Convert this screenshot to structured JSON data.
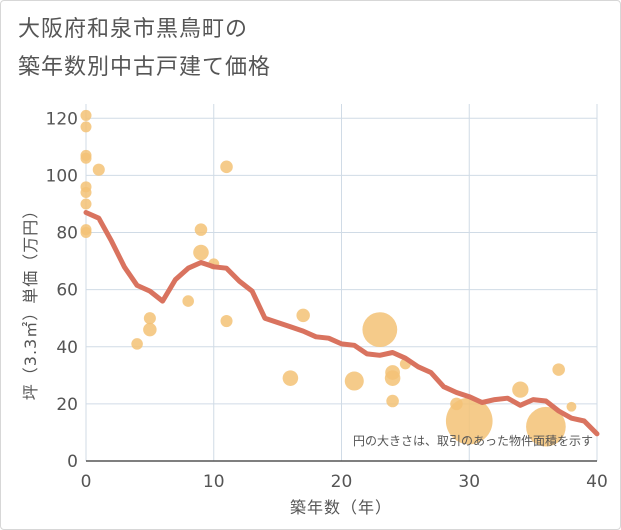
{
  "title_line1": "大阪府和泉市黒鳥町の",
  "title_line2": "築年数別中古戸建て価格",
  "chart_data": {
    "type": "scatter",
    "title": "大阪府和泉市黒鳥町の築年数別中古戸建て価格",
    "xlabel": "築年数（年）",
    "ylabel": "坪（3.3㎡）単価（万円）",
    "xlim": [
      0,
      40
    ],
    "ylim": [
      0,
      125
    ],
    "xticks": [
      0,
      10,
      20,
      30,
      40
    ],
    "yticks": [
      0,
      20,
      40,
      60,
      80,
      100,
      120
    ],
    "xtick_labels": [
      "0",
      "10",
      "20",
      "30",
      "40"
    ],
    "ytick_labels": [
      "0",
      "20",
      "40",
      "60",
      "80",
      "100",
      "120"
    ],
    "note": "円の大きさは、取引のあった物件面積を示す",
    "grid": true,
    "colors": {
      "bubble": "#f3c275",
      "line": "#d9735f",
      "grid": "#d0dbe6",
      "axis": "#555555"
    },
    "bubbles": [
      {
        "x": 0,
        "y": 121,
        "size": 1
      },
      {
        "x": 0,
        "y": 117,
        "size": 1
      },
      {
        "x": 0,
        "y": 107,
        "size": 1
      },
      {
        "x": 0,
        "y": 106,
        "size": 1
      },
      {
        "x": 0,
        "y": 96,
        "size": 1
      },
      {
        "x": 0,
        "y": 94,
        "size": 1
      },
      {
        "x": 0,
        "y": 90,
        "size": 1
      },
      {
        "x": 0,
        "y": 81,
        "size": 1
      },
      {
        "x": 0,
        "y": 80,
        "size": 1
      },
      {
        "x": 1,
        "y": 102,
        "size": 1.2
      },
      {
        "x": 4,
        "y": 41,
        "size": 1.1
      },
      {
        "x": 5,
        "y": 50,
        "size": 1.2
      },
      {
        "x": 5,
        "y": 46,
        "size": 1.5
      },
      {
        "x": 8,
        "y": 56,
        "size": 1.1
      },
      {
        "x": 9,
        "y": 81,
        "size": 1.3
      },
      {
        "x": 9,
        "y": 73,
        "size": 2
      },
      {
        "x": 10,
        "y": 69,
        "size": 1
      },
      {
        "x": 11,
        "y": 103,
        "size": 1.3
      },
      {
        "x": 11,
        "y": 49,
        "size": 1.2
      },
      {
        "x": 16,
        "y": 29,
        "size": 2
      },
      {
        "x": 17,
        "y": 51,
        "size": 1.5
      },
      {
        "x": 21,
        "y": 28,
        "size": 3
      },
      {
        "x": 23,
        "y": 46,
        "size": 10
      },
      {
        "x": 24,
        "y": 31,
        "size": 1.8
      },
      {
        "x": 24,
        "y": 29,
        "size": 2
      },
      {
        "x": 24,
        "y": 21,
        "size": 1.3
      },
      {
        "x": 25,
        "y": 34,
        "size": 1
      },
      {
        "x": 29,
        "y": 20,
        "size": 1.3
      },
      {
        "x": 30,
        "y": 14,
        "size": 18
      },
      {
        "x": 34,
        "y": 25,
        "size": 2.2
      },
      {
        "x": 36,
        "y": 12,
        "size": 13
      },
      {
        "x": 37,
        "y": 32,
        "size": 1.3
      },
      {
        "x": 38,
        "y": 19,
        "size": 0.8
      }
    ],
    "trend": {
      "x": [
        0,
        1,
        2,
        3,
        4,
        5,
        6,
        7,
        8,
        9,
        10,
        11,
        12,
        13,
        14,
        15,
        16,
        17,
        18,
        19,
        20,
        21,
        22,
        23,
        24,
        25,
        26,
        27,
        28,
        29,
        30,
        31,
        32,
        33,
        34,
        35,
        36,
        37,
        38,
        39,
        40
      ],
      "y": [
        87,
        85,
        77,
        68,
        61.5,
        59.5,
        56,
        63.5,
        67.5,
        69.5,
        68,
        67.5,
        63,
        59.5,
        50,
        48.5,
        47,
        45.5,
        43.5,
        43,
        41,
        40.5,
        37.5,
        37,
        38,
        36,
        33,
        31,
        26,
        24,
        22.5,
        20.5,
        21.5,
        22,
        19.5,
        21.5,
        21,
        17.5,
        15,
        14,
        9.5
      ]
    }
  }
}
